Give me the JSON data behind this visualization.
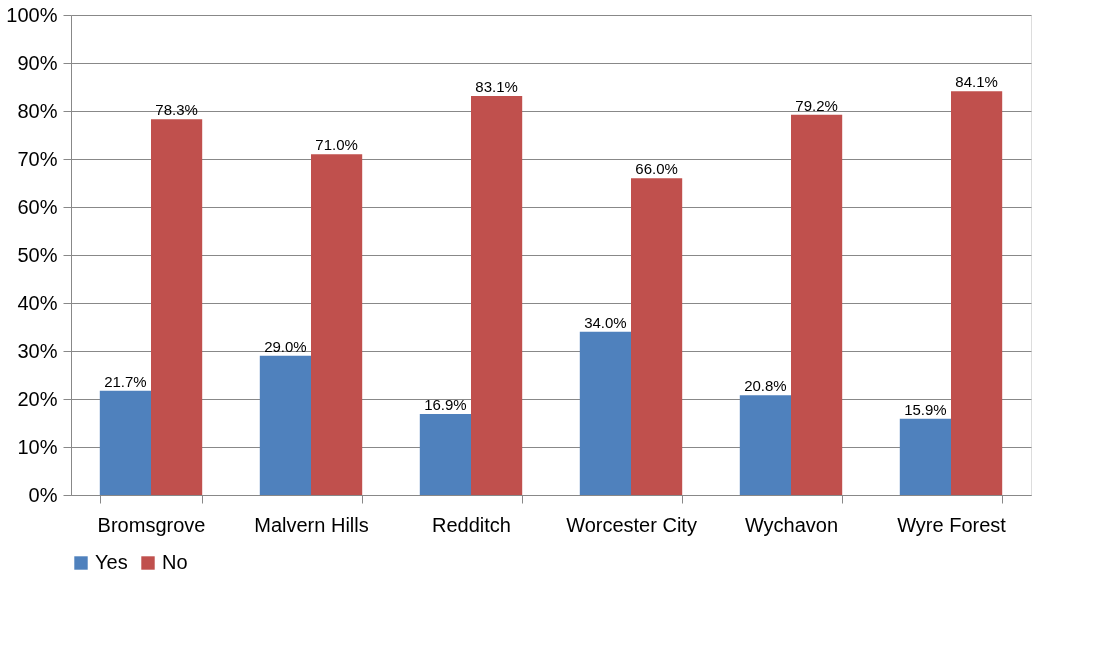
{
  "chart_data": {
    "type": "bar",
    "categories": [
      "Bromsgrove",
      "Malvern Hills",
      "Redditch",
      "Worcester City",
      "Wychavon",
      "Wyre Forest"
    ],
    "series": [
      {
        "name": "Yes",
        "color": "#4f81bd",
        "values": [
          21.7,
          29.0,
          16.9,
          34.0,
          20.8,
          15.9
        ],
        "value_labels": [
          "21.7%",
          "29.0%",
          "16.9%",
          "34.0%",
          "20.8%",
          "15.9%"
        ]
      },
      {
        "name": "No",
        "color": "#c0504d",
        "values": [
          78.3,
          71.0,
          83.1,
          66.0,
          79.2,
          84.1
        ],
        "value_labels": [
          "78.3%",
          "71.0%",
          "83.1%",
          "66.0%",
          "79.2%",
          "84.1%"
        ]
      }
    ],
    "ylim": [
      0,
      100
    ],
    "yticks": [
      {
        "value": 0,
        "label": "0%"
      },
      {
        "value": 10,
        "label": "10%"
      },
      {
        "value": 20,
        "label": "20%"
      },
      {
        "value": 30,
        "label": "30%"
      },
      {
        "value": 40,
        "label": "40%"
      },
      {
        "value": 50,
        "label": "50%"
      },
      {
        "value": 60,
        "label": "60%"
      },
      {
        "value": 70,
        "label": "70%"
      },
      {
        "value": 80,
        "label": "80%"
      },
      {
        "value": 90,
        "label": "90%"
      },
      {
        "value": 100,
        "label": "100%"
      }
    ],
    "grid": "y",
    "legend": "bottom"
  }
}
